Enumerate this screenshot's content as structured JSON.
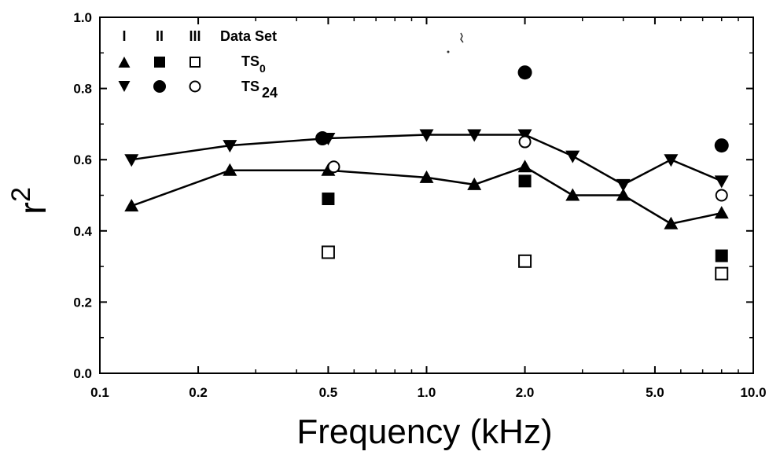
{
  "chart_data": {
    "type": "scatter",
    "xlabel": "Frequency (kHz)",
    "ylabel": "r",
    "ylabel_superscript": "2",
    "xscale": "log",
    "xlim": [
      0.1,
      10.0
    ],
    "ylim": [
      0.0,
      1.0
    ],
    "x_ticks": [
      0.1,
      0.2,
      0.5,
      1.0,
      2.0,
      5.0,
      10.0
    ],
    "x_tick_labels": [
      "0.1",
      "0.2",
      "0.5",
      "1.0",
      "2.0",
      "5.0",
      "10.0"
    ],
    "y_ticks": [
      0.0,
      0.2,
      0.4,
      0.6,
      0.8,
      1.0
    ],
    "y_tick_labels": [
      "0.0",
      "0.2",
      "0.4",
      "0.6",
      "0.8",
      "1.0"
    ],
    "grid": false,
    "legend": {
      "placement": "top-left",
      "header": [
        "I",
        "II",
        "III",
        "Data Set"
      ],
      "rows": [
        {
          "label": "TS",
          "subscript": "0",
          "markers": [
            "triangle-up-filled",
            "square-filled",
            "square-open"
          ]
        },
        {
          "label": "TS",
          "subscript": "24",
          "markers": [
            "triangle-down-filled",
            "circle-filled",
            "circle-open"
          ]
        }
      ]
    },
    "series": [
      {
        "marker": "triangle-down-filled",
        "connected": true,
        "x": [
          0.125,
          0.25,
          0.5,
          1.0,
          1.4,
          2.0,
          2.8,
          4.0,
          5.6,
          8.0
        ],
        "y": [
          0.6,
          0.64,
          0.66,
          0.67,
          0.67,
          0.67,
          0.61,
          0.53,
          0.6,
          0.54
        ]
      },
      {
        "marker": "triangle-up-filled",
        "connected": true,
        "x": [
          0.125,
          0.25,
          0.5,
          1.0,
          1.4,
          2.0,
          2.8,
          4.0,
          5.6,
          8.0
        ],
        "y": [
          0.47,
          0.57,
          0.57,
          0.55,
          0.53,
          0.58,
          0.5,
          0.5,
          0.42,
          0.45
        ]
      },
      {
        "marker": "square-filled",
        "connected": false,
        "x": [
          0.5,
          2.0,
          8.0
        ],
        "y": [
          0.49,
          0.54,
          0.33
        ]
      },
      {
        "marker": "square-open",
        "connected": false,
        "x": [
          0.5,
          2.0,
          8.0
        ],
        "y": [
          0.34,
          0.315,
          0.28
        ]
      },
      {
        "marker": "circle-filled",
        "connected": false,
        "x": [
          0.48,
          2.0,
          8.0
        ],
        "y": [
          0.66,
          0.845,
          0.64
        ]
      },
      {
        "marker": "circle-open",
        "connected": false,
        "x": [
          0.52,
          2.0,
          8.0
        ],
        "y": [
          0.58,
          0.65,
          0.5
        ]
      }
    ]
  }
}
